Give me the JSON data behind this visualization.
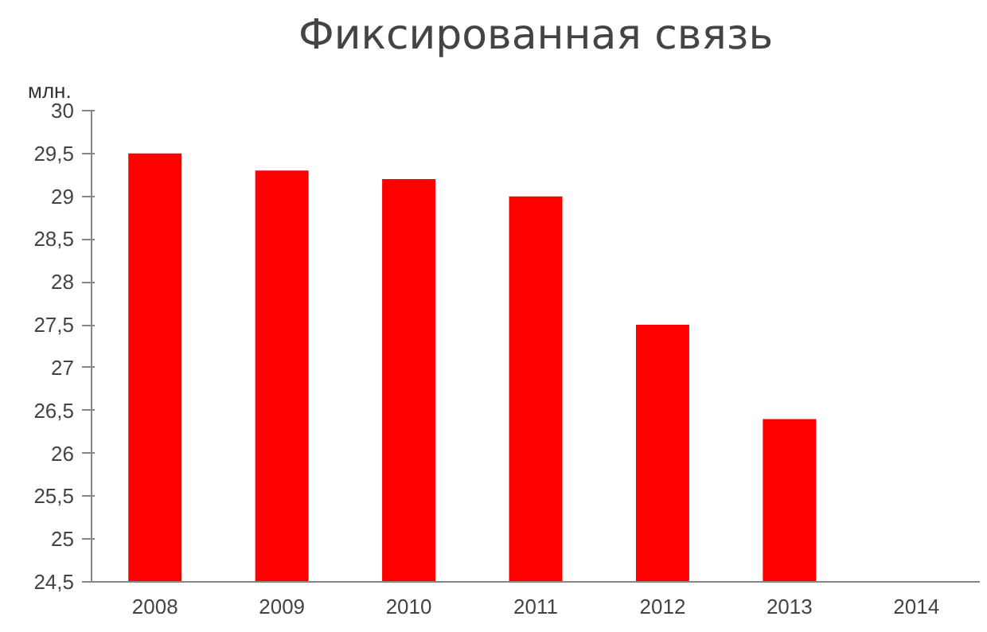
{
  "chart_data": {
    "type": "bar",
    "title": "Фиксированная связь",
    "ylabel": "млн.",
    "categories": [
      "2008",
      "2009",
      "2010",
      "2011",
      "2012",
      "2013",
      "2014"
    ],
    "values": [
      29.5,
      29.3,
      29.2,
      29.0,
      27.5,
      26.4,
      null
    ],
    "color": "#ff0000",
    "ylim": [
      24.5,
      30
    ],
    "yticks": [
      {
        "value": 24.5,
        "label": "24,5"
      },
      {
        "value": 25,
        "label": "25"
      },
      {
        "value": 25.5,
        "label": "25,5"
      },
      {
        "value": 26,
        "label": "26"
      },
      {
        "value": 26.5,
        "label": "26,5"
      },
      {
        "value": 27,
        "label": "27"
      },
      {
        "value": 27.5,
        "label": "27,5"
      },
      {
        "value": 28,
        "label": "28"
      },
      {
        "value": 28.5,
        "label": "28,5"
      },
      {
        "value": 29,
        "label": "29"
      },
      {
        "value": 29.5,
        "label": "29,5"
      },
      {
        "value": 30,
        "label": "30"
      }
    ],
    "grid": false
  }
}
